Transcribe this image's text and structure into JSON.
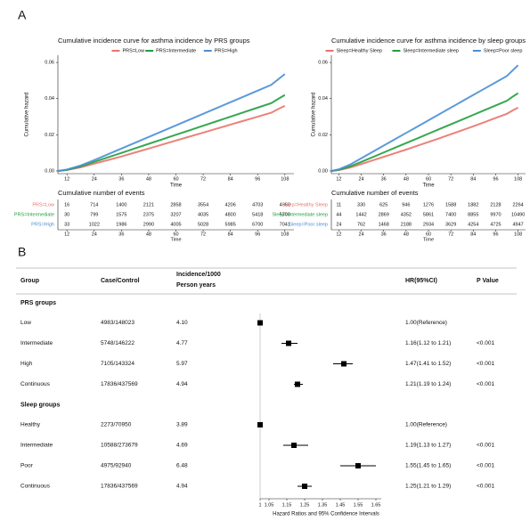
{
  "panel_labels": [
    "A",
    "B"
  ],
  "chart_data": [
    {
      "type": "line",
      "title": "Cumulative incidence curve for asthma incidence by PRS groups",
      "xlabel": "Time",
      "ylabel": "Cumulative hazard",
      "legend_position": "top",
      "x": [
        8,
        12,
        18,
        24,
        30,
        36,
        42,
        48,
        54,
        60,
        66,
        72,
        78,
        84,
        90,
        96,
        102,
        105,
        108
      ],
      "xlim": [
        8,
        112
      ],
      "xticks": [
        12,
        24,
        36,
        48,
        60,
        72,
        84,
        96,
        108
      ],
      "ylim": [
        -0.0015,
        0.064
      ],
      "yticks": [
        {
          "value": 0,
          "label": "0.00"
        },
        {
          "value": 0.02,
          "label": "0.02"
        },
        {
          "value": 0.04,
          "label": "0.04"
        },
        {
          "value": 0.06,
          "label": "0.06"
        }
      ],
      "series": [
        {
          "name": "PRS=Low",
          "color": "#e8746b",
          "values": [
            0,
            0.0005,
            0.002,
            0.004,
            0.006,
            0.008,
            0.0102,
            0.0124,
            0.0146,
            0.0168,
            0.019,
            0.0212,
            0.0234,
            0.0256,
            0.0278,
            0.03,
            0.0322,
            0.0342,
            0.036
          ]
        },
        {
          "name": "PRS=Intermediate",
          "color": "#1f9e3c",
          "values": [
            0,
            0.0006,
            0.0025,
            0.005,
            0.0075,
            0.01,
            0.0125,
            0.015,
            0.0175,
            0.02,
            0.0225,
            0.025,
            0.0275,
            0.03,
            0.0325,
            0.035,
            0.0375,
            0.0398,
            0.042
          ]
        },
        {
          "name": "PRS=High",
          "color": "#4a8fd6",
          "values": [
            0,
            0.0008,
            0.003,
            0.006,
            0.0092,
            0.0124,
            0.0156,
            0.0188,
            0.022,
            0.0252,
            0.0284,
            0.0316,
            0.0348,
            0.038,
            0.0412,
            0.0444,
            0.0476,
            0.0506,
            0.0536
          ]
        }
      ],
      "risk_table": {
        "title": "Cumulative number of events",
        "xlabel": "Time",
        "times": [
          12,
          24,
          36,
          48,
          60,
          72,
          84,
          96,
          108
        ],
        "rows": [
          {
            "name": "PRS=Low",
            "color": "#e8746b",
            "values": [
              16,
              714,
              1400,
              2121,
              2858,
              3554,
              4206,
              4703,
              4950
            ]
          },
          {
            "name": "PRS=Intermediate",
            "color": "#1f9e3c",
            "values": [
              30,
              799,
              1575,
              2375,
              3207,
              4035,
              4800,
              5418,
              5700
            ]
          },
          {
            "name": "PRS=High",
            "color": "#4a8fd6",
            "values": [
              33,
              1022,
              1986,
              2990,
              4005,
              5028,
              5985,
              6700,
              7041
            ]
          }
        ]
      }
    },
    {
      "type": "line",
      "title": "Cumulative incidence curve for asthma incidence by sleep groups",
      "xlabel": "Time",
      "ylabel": "Cumulative hazard",
      "legend_position": "top",
      "x": [
        8,
        12,
        18,
        24,
        30,
        36,
        42,
        48,
        54,
        60,
        66,
        72,
        78,
        84,
        90,
        96,
        102,
        105,
        108
      ],
      "xlim": [
        8,
        112
      ],
      "xticks": [
        12,
        24,
        36,
        48,
        60,
        72,
        84,
        96,
        108
      ],
      "ylim": [
        -0.0015,
        0.064
      ],
      "yticks": [
        {
          "value": 0,
          "label": "0.00"
        },
        {
          "value": 0.02,
          "label": "0.02"
        },
        {
          "value": 0.04,
          "label": "0.04"
        },
        {
          "value": 0.06,
          "label": "0.06"
        }
      ],
      "series": [
        {
          "name": "Sleep=Healthy Sleep",
          "color": "#e8746b",
          "values": [
            0,
            0.0005,
            0.0019,
            0.0038,
            0.0058,
            0.0078,
            0.0098,
            0.0118,
            0.0139,
            0.016,
            0.0181,
            0.0203,
            0.0225,
            0.0247,
            0.027,
            0.0293,
            0.0316,
            0.0334,
            0.035
          ]
        },
        {
          "name": "Sleep=Intermediate sleep",
          "color": "#1f9e3c",
          "values": [
            0,
            0.0006,
            0.0025,
            0.005,
            0.0076,
            0.0102,
            0.0128,
            0.0154,
            0.018,
            0.0206,
            0.0232,
            0.0258,
            0.0284,
            0.031,
            0.0336,
            0.0362,
            0.0388,
            0.041,
            0.043
          ]
        },
        {
          "name": "Sleep=Poor sleep",
          "color": "#4a8fd6",
          "values": [
            0,
            0.0009,
            0.0035,
            0.007,
            0.0105,
            0.014,
            0.0175,
            0.021,
            0.0245,
            0.028,
            0.0315,
            0.035,
            0.0385,
            0.042,
            0.0455,
            0.049,
            0.0525,
            0.0555,
            0.0585
          ]
        }
      ],
      "risk_table": {
        "title": "Cumulative number of events",
        "xlabel": "Time",
        "times": [
          12,
          24,
          36,
          48,
          60,
          72,
          84,
          96,
          108
        ],
        "rows": [
          {
            "name": "Sleep=Healthy Sleep",
            "color": "#e8746b",
            "values": [
              11,
              330,
              625,
              946,
              1276,
              1588,
              1882,
              2128,
              2264
            ]
          },
          {
            "name": "Sleep=Intermediate sleep",
            "color": "#1f9e3c",
            "values": [
              44,
              1442,
              2869,
              4352,
              5861,
              7400,
              8855,
              9970,
              10490
            ]
          },
          {
            "name": "Sleep=Poor sleep",
            "color": "#4a8fd6",
            "values": [
              24,
              762,
              1468,
              2188,
              2934,
              3629,
              4254,
              4725,
              4947
            ]
          }
        ]
      }
    },
    {
      "type": "forest",
      "xlabel": "Hazard Ratios and 95% Confidence Intervals",
      "xlim": [
        1,
        1.68
      ],
      "xticks": [
        1,
        1.05,
        1.15,
        1.25,
        1.35,
        1.45,
        1.55,
        1.65
      ],
      "reference": 1,
      "headers": {
        "group": "Group",
        "case_control": "Case/Control",
        "incidence": [
          "Incidence/1000",
          "Person years"
        ],
        "hr": "HR(95%CI)",
        "p": "P Value"
      },
      "sections": [
        {
          "title": "PRS groups",
          "rows": [
            {
              "group": "Low",
              "case_control": "4983/148023",
              "incidence": "4.10",
              "hr": 1,
              "hr_label": "1.00(Reference)"
            },
            {
              "group": "Intermediate",
              "case_control": "5748/146222",
              "incidence": "4.77",
              "hr": 1.16,
              "lo": 1.12,
              "hi": 1.21,
              "hr_label": "1.16(1.12 to 1.21)",
              "p": "<0.001"
            },
            {
              "group": "High",
              "case_control": "7105/143324",
              "incidence": "5.97",
              "hr": 1.47,
              "lo": 1.41,
              "hi": 1.52,
              "hr_label": "1.47(1.41 to 1.52)",
              "p": "<0.001"
            },
            {
              "group": "Continuous",
              "case_control": "17836/437569",
              "incidence": "4.94",
              "hr": 1.21,
              "lo": 1.19,
              "hi": 1.24,
              "hr_label": "1.21(1.19 to 1.24)",
              "p": "<0.001"
            }
          ]
        },
        {
          "title": "Sleep groups",
          "rows": [
            {
              "group": "Healthy",
              "case_control": "2273/70950",
              "incidence": "3.89",
              "hr": 1,
              "hr_label": "1.00(Reference)"
            },
            {
              "group": "Intermediate",
              "case_control": "10588/273679",
              "incidence": "4.69",
              "hr": 1.19,
              "lo": 1.13,
              "hi": 1.27,
              "hr_label": "1.19(1.13 to 1.27)",
              "p": "<0.001"
            },
            {
              "group": "Poor",
              "case_control": "4975/92940",
              "incidence": "6.48",
              "hr": 1.55,
              "lo": 1.45,
              "hi": 1.65,
              "hr_label": "1.55(1.45 to 1.65)",
              "p": "<0.001"
            },
            {
              "group": "Continuous",
              "case_control": "17836/437569",
              "incidence": "4.94",
              "hr": 1.25,
              "lo": 1.21,
              "hi": 1.29,
              "hr_label": "1.25(1.21 to 1.29)",
              "p": "<0.001"
            }
          ]
        }
      ]
    }
  ]
}
